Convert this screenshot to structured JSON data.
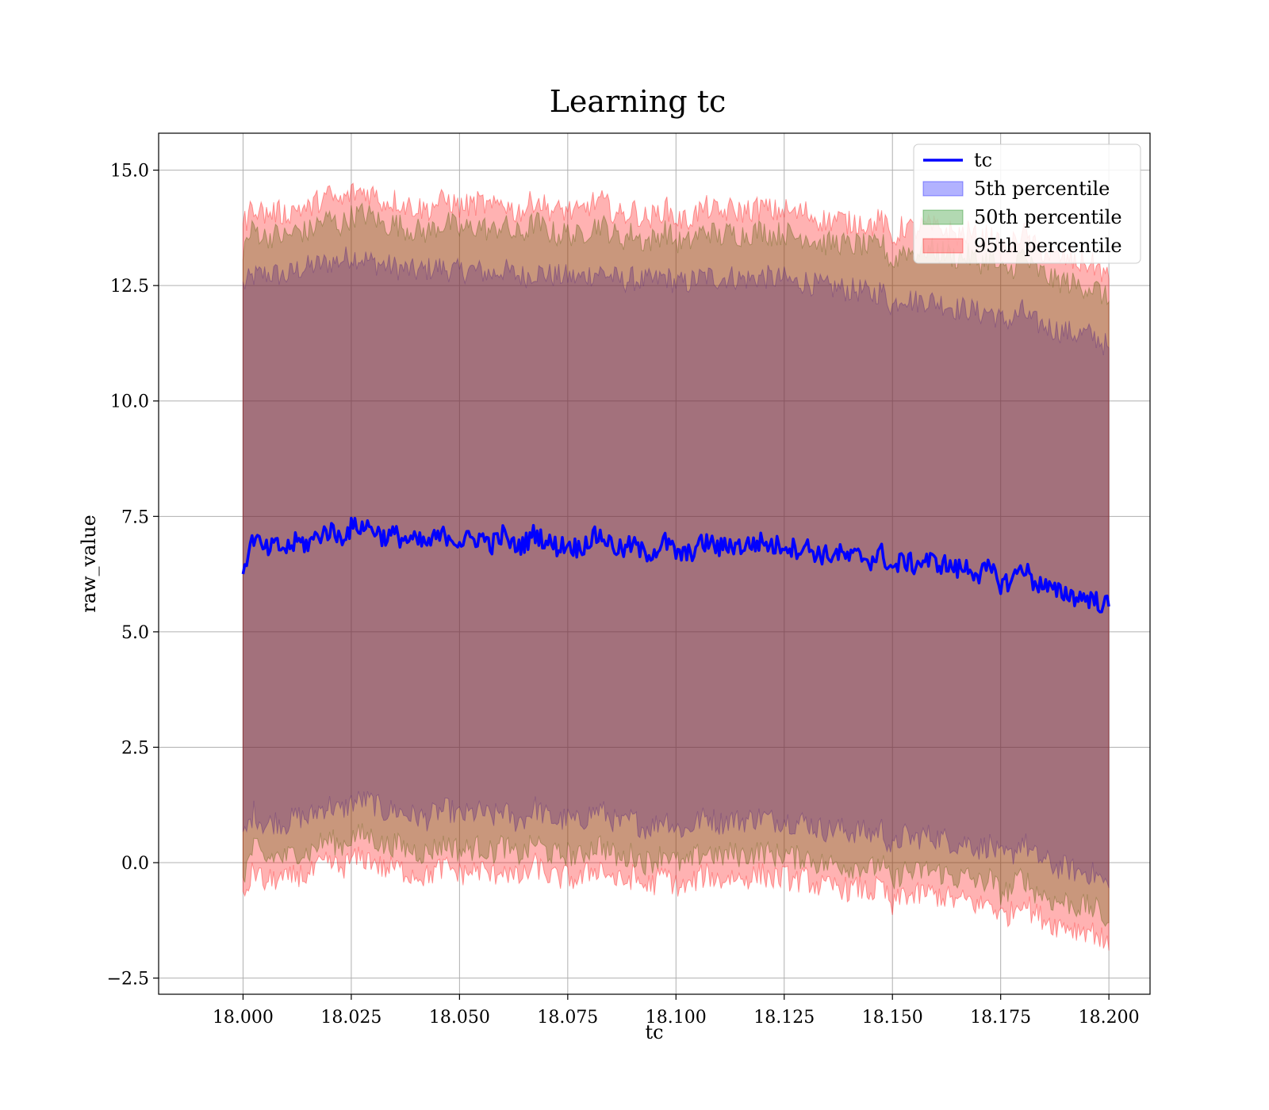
{
  "chart_data": {
    "type": "line",
    "title": "Learning tc",
    "xlabel": "tc",
    "ylabel": "raw_value",
    "xlim": [
      17.9805,
      18.2095
    ],
    "ylim": [
      -2.85,
      15.8
    ],
    "x_ticks": [
      18.0,
      18.025,
      18.05,
      18.075,
      18.1,
      18.125,
      18.15,
      18.175,
      18.2
    ],
    "x_tick_labels": [
      "18.000",
      "18.025",
      "18.050",
      "18.075",
      "18.100",
      "18.125",
      "18.150",
      "18.175",
      "18.200"
    ],
    "y_ticks": [
      -2.5,
      0.0,
      2.5,
      5.0,
      7.5,
      10.0,
      12.5,
      15.0
    ],
    "y_tick_labels": [
      "−2.5",
      "0.0",
      "2.5",
      "5.0",
      "7.5",
      "10.0",
      "12.5",
      "15.0"
    ],
    "grid": true,
    "legend_position": "top-right",
    "legend": [
      {
        "label": "tc",
        "kind": "line",
        "color": "#0000ff"
      },
      {
        "label": "5th percentile",
        "kind": "patch",
        "color": "#0000ff"
      },
      {
        "label": "50th percentile",
        "kind": "patch",
        "color": "#008000"
      },
      {
        "label": "95th percentile",
        "kind": "patch",
        "color": "#ff0000"
      }
    ],
    "series": [
      {
        "name": "tc",
        "color": "#0000ff",
        "x": [
          18.0,
          18.0025,
          18.005,
          18.0075,
          18.01,
          18.0125,
          18.015,
          18.0175,
          18.02,
          18.0225,
          18.025,
          18.0275,
          18.03,
          18.0325,
          18.035,
          18.0375,
          18.04,
          18.0425,
          18.045,
          18.0475,
          18.05,
          18.0525,
          18.055,
          18.0575,
          18.06,
          18.0625,
          18.065,
          18.0675,
          18.07,
          18.0725,
          18.075,
          18.0775,
          18.08,
          18.0825,
          18.085,
          18.0875,
          18.09,
          18.0925,
          18.095,
          18.0975,
          18.1,
          18.1025,
          18.105,
          18.1075,
          18.11,
          18.1125,
          18.115,
          18.1175,
          18.12,
          18.1225,
          18.125,
          18.1275,
          18.13,
          18.1325,
          18.135,
          18.1375,
          18.14,
          18.1425,
          18.145,
          18.1475,
          18.15,
          18.1525,
          18.155,
          18.1575,
          18.16,
          18.1625,
          18.165,
          18.1675,
          18.17,
          18.1725,
          18.175,
          18.1775,
          18.18,
          18.1825,
          18.185,
          18.1875,
          18.19,
          18.1925,
          18.195,
          18.1975,
          18.2
        ],
        "y": [
          6.4,
          7.05,
          6.75,
          6.85,
          6.8,
          6.95,
          6.9,
          7.1,
          7.2,
          7.05,
          7.25,
          7.3,
          7.25,
          7.05,
          7.1,
          7.0,
          6.95,
          6.9,
          7.05,
          7.1,
          6.95,
          7.0,
          7.05,
          6.9,
          7.1,
          6.85,
          6.9,
          7.15,
          6.95,
          6.85,
          6.9,
          6.8,
          7.0,
          7.1,
          6.9,
          6.75,
          6.9,
          6.7,
          6.75,
          6.95,
          6.7,
          6.65,
          6.85,
          6.95,
          6.8,
          6.9,
          6.85,
          6.9,
          6.95,
          6.85,
          6.9,
          6.8,
          6.85,
          6.7,
          6.65,
          6.7,
          6.6,
          6.65,
          6.55,
          6.7,
          6.35,
          6.55,
          6.45,
          6.55,
          6.5,
          6.45,
          6.35,
          6.4,
          6.25,
          6.35,
          6.05,
          6.1,
          6.45,
          6.1,
          6.0,
          5.85,
          5.85,
          5.75,
          5.75,
          5.65,
          5.55
        ]
      },
      {
        "name": "5th percentile",
        "color": "#0000ff",
        "upper": [
          12.5,
          12.7,
          12.75,
          12.75,
          12.7,
          12.85,
          12.9,
          12.95,
          13.0,
          13.05,
          13.15,
          13.1,
          13.0,
          12.95,
          12.9,
          12.85,
          12.8,
          12.85,
          12.9,
          12.85,
          12.8,
          12.85,
          12.8,
          12.75,
          12.85,
          12.75,
          12.7,
          12.8,
          12.75,
          12.7,
          12.7,
          12.65,
          12.75,
          12.8,
          12.7,
          12.6,
          12.65,
          12.6,
          12.6,
          12.7,
          12.55,
          12.55,
          12.65,
          12.7,
          12.65,
          12.7,
          12.65,
          12.65,
          12.7,
          12.65,
          12.65,
          12.55,
          12.6,
          12.5,
          12.45,
          12.45,
          12.4,
          12.4,
          12.3,
          12.4,
          12.05,
          12.3,
          12.15,
          12.2,
          12.15,
          12.1,
          12.0,
          12.0,
          11.9,
          11.95,
          11.75,
          11.75,
          11.95,
          11.7,
          11.65,
          11.55,
          11.5,
          11.45,
          11.45,
          11.35,
          11.15
        ],
        "lower": [
          0.5,
          1.1,
          0.8,
          0.9,
          0.85,
          1.0,
          0.95,
          1.15,
          1.25,
          1.1,
          1.3,
          1.35,
          1.3,
          1.1,
          1.15,
          1.05,
          1.0,
          0.95,
          1.1,
          1.15,
          1.0,
          1.05,
          1.1,
          0.95,
          1.15,
          0.9,
          0.95,
          1.2,
          1.0,
          0.9,
          0.95,
          0.85,
          1.05,
          1.15,
          0.95,
          0.8,
          0.95,
          0.75,
          0.8,
          1.0,
          0.75,
          0.7,
          0.9,
          1.0,
          0.85,
          0.95,
          0.9,
          0.95,
          1.0,
          0.9,
          0.95,
          0.85,
          0.9,
          0.75,
          0.7,
          0.75,
          0.65,
          0.7,
          0.6,
          0.75,
          0.25,
          0.6,
          0.5,
          0.6,
          0.55,
          0.5,
          0.4,
          0.45,
          0.3,
          0.4,
          0.1,
          0.15,
          0.5,
          0.15,
          0.05,
          -0.1,
          -0.1,
          -0.2,
          -0.2,
          -0.3,
          -0.55
        ]
      },
      {
        "name": "50th percentile",
        "color": "#008000",
        "upper": [
          13.3,
          13.75,
          13.55,
          13.6,
          13.55,
          13.7,
          13.65,
          13.85,
          13.95,
          13.8,
          14.0,
          14.05,
          14.0,
          13.8,
          13.85,
          13.75,
          13.7,
          13.65,
          13.8,
          13.85,
          13.7,
          13.75,
          13.8,
          13.65,
          13.85,
          13.6,
          13.65,
          13.9,
          13.7,
          13.6,
          13.65,
          13.55,
          13.75,
          13.85,
          13.65,
          13.5,
          13.65,
          13.45,
          13.5,
          13.7,
          13.45,
          13.4,
          13.6,
          13.7,
          13.55,
          13.65,
          13.6,
          13.65,
          13.7,
          13.6,
          13.65,
          13.55,
          13.6,
          13.45,
          13.4,
          13.45,
          13.35,
          13.4,
          13.3,
          13.45,
          12.95,
          13.3,
          13.2,
          13.3,
          13.25,
          13.2,
          13.1,
          13.15,
          13.0,
          13.1,
          12.8,
          12.85,
          13.2,
          12.85,
          12.75,
          12.6,
          12.6,
          12.5,
          12.5,
          12.4,
          12.15
        ],
        "lower": [
          -0.3,
          0.35,
          0.05,
          0.15,
          0.1,
          0.25,
          0.2,
          0.4,
          0.5,
          0.35,
          0.55,
          0.6,
          0.55,
          0.35,
          0.4,
          0.3,
          0.25,
          0.2,
          0.35,
          0.4,
          0.25,
          0.3,
          0.35,
          0.2,
          0.4,
          0.15,
          0.2,
          0.45,
          0.25,
          0.15,
          0.2,
          0.1,
          0.3,
          0.4,
          0.2,
          0.05,
          0.2,
          0.0,
          0.05,
          0.25,
          0.0,
          -0.05,
          0.15,
          0.25,
          0.1,
          0.2,
          0.15,
          0.2,
          0.25,
          0.15,
          0.2,
          0.1,
          0.15,
          0.0,
          -0.05,
          0.0,
          -0.1,
          -0.05,
          -0.15,
          0.0,
          -0.5,
          -0.15,
          -0.25,
          -0.15,
          -0.2,
          -0.25,
          -0.35,
          -0.3,
          -0.45,
          -0.35,
          -0.65,
          -0.6,
          -0.25,
          -0.6,
          -0.7,
          -0.85,
          -0.85,
          -0.95,
          -0.95,
          -1.05,
          -1.3
        ]
      },
      {
        "name": "95th percentile",
        "color": "#ff0000",
        "upper": [
          13.8,
          14.25,
          14.05,
          14.1,
          14.05,
          14.2,
          14.15,
          14.35,
          14.45,
          14.3,
          14.5,
          14.55,
          14.5,
          14.3,
          14.35,
          14.25,
          14.2,
          14.15,
          14.3,
          14.35,
          14.2,
          14.25,
          14.3,
          14.15,
          14.35,
          14.1,
          14.15,
          14.4,
          14.2,
          14.1,
          14.15,
          14.05,
          14.25,
          14.35,
          14.15,
          14.0,
          14.15,
          13.95,
          14.0,
          14.2,
          13.95,
          13.9,
          14.1,
          14.2,
          14.05,
          14.15,
          14.1,
          14.15,
          14.2,
          14.1,
          14.15,
          14.05,
          14.1,
          13.95,
          13.9,
          13.95,
          13.85,
          13.9,
          13.8,
          13.95,
          13.45,
          13.8,
          13.7,
          13.8,
          13.75,
          13.7,
          13.6,
          13.65,
          13.5,
          13.6,
          13.3,
          13.35,
          13.7,
          13.35,
          13.25,
          13.1,
          13.1,
          13.0,
          13.0,
          12.9,
          12.65
        ],
        "lower": [
          -0.8,
          -0.15,
          -0.45,
          -0.35,
          -0.4,
          -0.25,
          -0.3,
          -0.1,
          0.0,
          -0.15,
          0.05,
          0.1,
          0.05,
          -0.15,
          -0.1,
          -0.2,
          -0.25,
          -0.3,
          -0.15,
          -0.1,
          -0.25,
          -0.2,
          -0.15,
          -0.3,
          -0.1,
          -0.35,
          -0.3,
          -0.05,
          -0.25,
          -0.35,
          -0.3,
          -0.4,
          -0.2,
          -0.1,
          -0.3,
          -0.45,
          -0.3,
          -0.5,
          -0.45,
          -0.25,
          -0.5,
          -0.55,
          -0.35,
          -0.25,
          -0.4,
          -0.3,
          -0.35,
          -0.3,
          -0.25,
          -0.35,
          -0.3,
          -0.4,
          -0.35,
          -0.5,
          -0.55,
          -0.5,
          -0.6,
          -0.55,
          -0.65,
          -0.5,
          -1.0,
          -0.65,
          -0.75,
          -0.65,
          -0.7,
          -0.75,
          -0.85,
          -0.8,
          -0.95,
          -0.85,
          -1.15,
          -1.1,
          -0.75,
          -1.1,
          -1.2,
          -1.35,
          -1.35,
          -1.45,
          -1.45,
          -1.55,
          -1.9
        ]
      }
    ]
  }
}
